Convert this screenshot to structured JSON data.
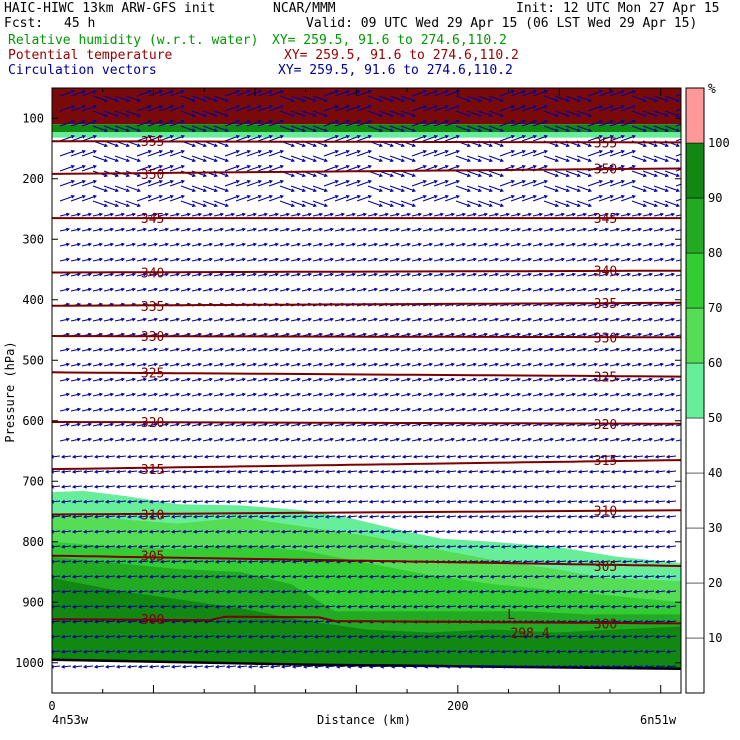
{
  "header": {
    "model": "HAIC-HIWC 13km ARW-GFS init",
    "center": "NCAR/MMM",
    "init": "Init: 12 UTC Mon 27 Apr 15",
    "fcst_label": "Fcst:",
    "fcst_value": "45 h",
    "valid": "Valid: 09 UTC Wed 29 Apr 15 (06 LST Wed 29 Apr 15)",
    "fields": [
      {
        "name": "Relative humidity (w.r.t. water)",
        "xy": "XY= 259.5, 91.6 to 274.6,110.2",
        "color": "#009900"
      },
      {
        "name": "Potential temperature",
        "xy": "XY= 259.5, 91.6 to 274.6,110.2",
        "color": "#990000"
      },
      {
        "name": "Circulation vectors",
        "xy": "XY= 259.5, 91.6 to 274.6,110.2",
        "color": "#000099"
      }
    ]
  },
  "chart_data": {
    "type": "cross-section",
    "ylabel": "Pressure (hPa)",
    "xlabel": "Distance (km)",
    "x_left_label": "4n53w",
    "x_right_label": "6n51w",
    "xlim": [
      0,
      310
    ],
    "ylim": [
      1050,
      50
    ],
    "xticks": [
      0,
      200
    ],
    "yticks": [
      100,
      200,
      300,
      400,
      500,
      600,
      700,
      800,
      900,
      1000
    ],
    "colorbar": {
      "unit": "%",
      "levels": [
        10,
        20,
        30,
        40,
        50,
        60,
        70,
        80,
        90,
        100
      ],
      "colors": [
        "#ffffff",
        "#ffffff",
        "#ffffff",
        "#ffffff",
        "#ffffff",
        "#66ee99",
        "#55dd55",
        "#33cc33",
        "#22aa22",
        "#118811",
        "#ff9999"
      ]
    },
    "theta_contours": [
      {
        "value": 355,
        "label": "355",
        "p_left": 138,
        "p_right": 140
      },
      {
        "value": 350,
        "label": "350",
        "p_left": 192,
        "p_right": 183
      },
      {
        "value": 345,
        "label": "345",
        "p_left": 265,
        "p_right": 265
      },
      {
        "value": 340,
        "label": "340",
        "p_left": 355,
        "p_right": 352
      },
      {
        "value": 335,
        "label": "335",
        "p_left": 410,
        "p_right": 405
      },
      {
        "value": 330,
        "label": "330",
        "p_left": 460,
        "p_right": 462
      },
      {
        "value": 325,
        "label": "325",
        "p_left": 520,
        "p_right": 527
      },
      {
        "value": 320,
        "label": "320",
        "p_left": 602,
        "p_right": 605
      },
      {
        "value": 315,
        "label": "315",
        "p_left": 680,
        "p_right": 665
      },
      {
        "value": 310,
        "label": "310",
        "p_left": 755,
        "p_right": 748
      },
      {
        "value": 305,
        "label": "305",
        "p_left": 823,
        "p_right": 840
      },
      {
        "value": 300,
        "label": "300",
        "p_left": 928,
        "p_right": 935
      }
    ],
    "low_label": "L",
    "low_value": "298.4",
    "surface_pressure": {
      "left": 995,
      "right": 1010
    }
  }
}
